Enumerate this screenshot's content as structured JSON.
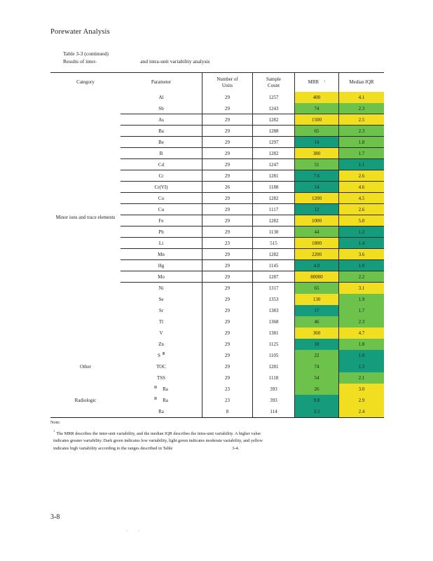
{
  "page": {
    "header": "Porewater Analysis",
    "page_number": "3-8",
    "footer_marks": "· ·"
  },
  "table_title": {
    "line1": "Table 3-3 (continued)",
    "line2_pre": "Results of inter-",
    "line2_post": "and intra-unit variability analysis"
  },
  "colors": {
    "high": "#F2DE21",
    "moderate": "#6CC24B",
    "low": "#149C7D"
  },
  "table": {
    "header": {
      "category": "Category",
      "parameter": "Parameter",
      "units_line1": "Number of",
      "units_line2": "Units",
      "count_line1": "Sample",
      "count_line2": "Count",
      "mrr": "MRR",
      "mrr_sup": "1",
      "iqr": "Median IQR"
    },
    "category_labels": [
      {
        "label": "Minor ions and trace elements"
      },
      {
        "label": "Other"
      },
      {
        "label": "Radiologic"
      }
    ],
    "rows": [
      {
        "param": "Al",
        "units": "29",
        "count": "1257",
        "mrr": "400",
        "mrr_level": "high",
        "iqr": "4.1",
        "iqr_level": "high",
        "line_below": false
      },
      {
        "param": "Sb",
        "units": "29",
        "count": "1243",
        "mrr": "74",
        "mrr_level": "moderate",
        "iqr": "2.3",
        "iqr_level": "moderate",
        "line_below": true
      },
      {
        "param": "As",
        "units": "29",
        "count": "1282",
        "mrr": "1500",
        "mrr_level": "high",
        "iqr": "2.5",
        "iqr_level": "high",
        "line_below": true
      },
      {
        "param": "Ba",
        "units": "29",
        "count": "1288",
        "mrr": "65",
        "mrr_level": "moderate",
        "iqr": "2.3",
        "iqr_level": "moderate",
        "line_below": true
      },
      {
        "param": "Be",
        "units": "29",
        "count": "1297",
        "mrr": "14",
        "mrr_level": "low",
        "iqr": "1.8",
        "iqr_level": "moderate",
        "line_below": true
      },
      {
        "param": "B",
        "units": "29",
        "count": "1282",
        "mrr": "380",
        "mrr_level": "high",
        "iqr": "1.7",
        "iqr_level": "moderate",
        "line_below": true
      },
      {
        "param": "Cd",
        "units": "29",
        "count": "1247",
        "mrr": "51",
        "mrr_level": "moderate",
        "iqr": "1.1",
        "iqr_level": "low",
        "line_below": true
      },
      {
        "param": "Cr",
        "units": "29",
        "count": "1281",
        "mrr": "7.6",
        "mrr_level": "low",
        "iqr": "2.6",
        "iqr_level": "high",
        "line_below": true
      },
      {
        "param": "Cr(VI)",
        "units": "26",
        "count": "1188",
        "mrr": "14",
        "mrr_level": "low",
        "iqr": "4.6",
        "iqr_level": "high",
        "line_below": true
      },
      {
        "param": "Co",
        "units": "29",
        "count": "1282",
        "mrr": "1200",
        "mrr_level": "high",
        "iqr": "4.5",
        "iqr_level": "high",
        "line_below": true
      },
      {
        "param": "Cu",
        "units": "29",
        "count": "1117",
        "mrr": "12",
        "mrr_level": "low",
        "iqr": "2.6",
        "iqr_level": "high",
        "line_below": true
      },
      {
        "param": "Fe",
        "units": "29",
        "count": "1282",
        "mrr": "1000",
        "mrr_level": "high",
        "iqr": "5.0",
        "iqr_level": "high",
        "line_below": true
      },
      {
        "param": "Pb",
        "units": "29",
        "count": "1130",
        "mrr": "44",
        "mrr_level": "moderate",
        "iqr": "1.2",
        "iqr_level": "low",
        "line_below": true
      },
      {
        "param": "Li",
        "units": "23",
        "count": "515",
        "mrr": "1800",
        "mrr_level": "high",
        "iqr": "1.4",
        "iqr_level": "low",
        "line_below": true
      },
      {
        "param": "Mn",
        "units": "29",
        "count": "1282",
        "mrr": "2200",
        "mrr_level": "high",
        "iqr": "3.6",
        "iqr_level": "high",
        "line_below": true
      },
      {
        "param": "Hg",
        "units": "29",
        "count": "1145",
        "mrr": "4.0",
        "mrr_level": "low",
        "iqr": "1.0",
        "iqr_level": "low",
        "line_below": true
      },
      {
        "param": "Mo",
        "units": "29",
        "count": "1287",
        "mrr": "80000",
        "mrr_level": "high",
        "iqr": "2.2",
        "iqr_level": "moderate",
        "line_below": true
      },
      {
        "param": "Ni",
        "units": "29",
        "count": "1317",
        "mrr": "65",
        "mrr_level": "moderate",
        "iqr": "3.1",
        "iqr_level": "high",
        "line_below": false
      },
      {
        "param": "Se",
        "units": "29",
        "count": "1353",
        "mrr": "130",
        "mrr_level": "high",
        "iqr": "1.9",
        "iqr_level": "moderate",
        "line_below": false
      },
      {
        "param": "Sr",
        "units": "29",
        "count": "1383",
        "mrr": "17",
        "mrr_level": "low",
        "iqr": "1.7",
        "iqr_level": "moderate",
        "line_below": false
      },
      {
        "param": "Tl",
        "units": "29",
        "count": "1368",
        "mrr": "46",
        "mrr_level": "moderate",
        "iqr": "2.3",
        "iqr_level": "moderate",
        "line_below": false
      },
      {
        "param": "V",
        "units": "29",
        "count": "1381",
        "mrr": "360",
        "mrr_level": "high",
        "iqr": "4.7",
        "iqr_level": "high",
        "line_below": false
      },
      {
        "param": "Zn",
        "units": "29",
        "count": "1125",
        "mrr": "18",
        "mrr_level": "low",
        "iqr": "1.8",
        "iqr_level": "moderate",
        "line_below": false
      },
      {
        "param": "S",
        "sup_post": true,
        "units": "29",
        "count": "1105",
        "mrr": "22",
        "mrr_level": "moderate",
        "iqr": "1.0",
        "iqr_level": "low",
        "line_below": false
      },
      {
        "param": "TOC",
        "units": "29",
        "count": "1281",
        "mrr": "74",
        "mrr_level": "moderate",
        "iqr": "1.3",
        "iqr_level": "low",
        "line_below": false
      },
      {
        "param": "TSS",
        "units": "29",
        "count": "1118",
        "mrr": "54",
        "mrr_level": "moderate",
        "iqr": "2.1",
        "iqr_level": "moderate",
        "line_below": false
      },
      {
        "param": "Ra",
        "sup_pre": true,
        "units": "23",
        "count": "393",
        "mrr": "26",
        "mrr_level": "moderate",
        "iqr": "3.0",
        "iqr_level": "high",
        "line_below": false
      },
      {
        "param": "Ra",
        "sup_pre": true,
        "units": "23",
        "count": "393",
        "mrr": "9.8",
        "mrr_level": "low",
        "iqr": "2.9",
        "iqr_level": "high",
        "line_below": false
      },
      {
        "param": "Ra",
        "units": "8",
        "count": "114",
        "mrr": "3.3",
        "mrr_level": "low",
        "iqr": "2.4",
        "iqr_level": "high",
        "line_below": false
      }
    ]
  },
  "note": {
    "label": "Note:",
    "sup": "1",
    "line1": "The MRR describes the inter-unit variability, and the median IQR describes the intra-unit variability. A higher value",
    "line2": "indicates greater variability. Dark green indicates low variability, light green indicates moderate variability, and yellow",
    "line3_pre": "indicates high variability according to the ranges described in Table",
    "line3_post": "3-4."
  }
}
